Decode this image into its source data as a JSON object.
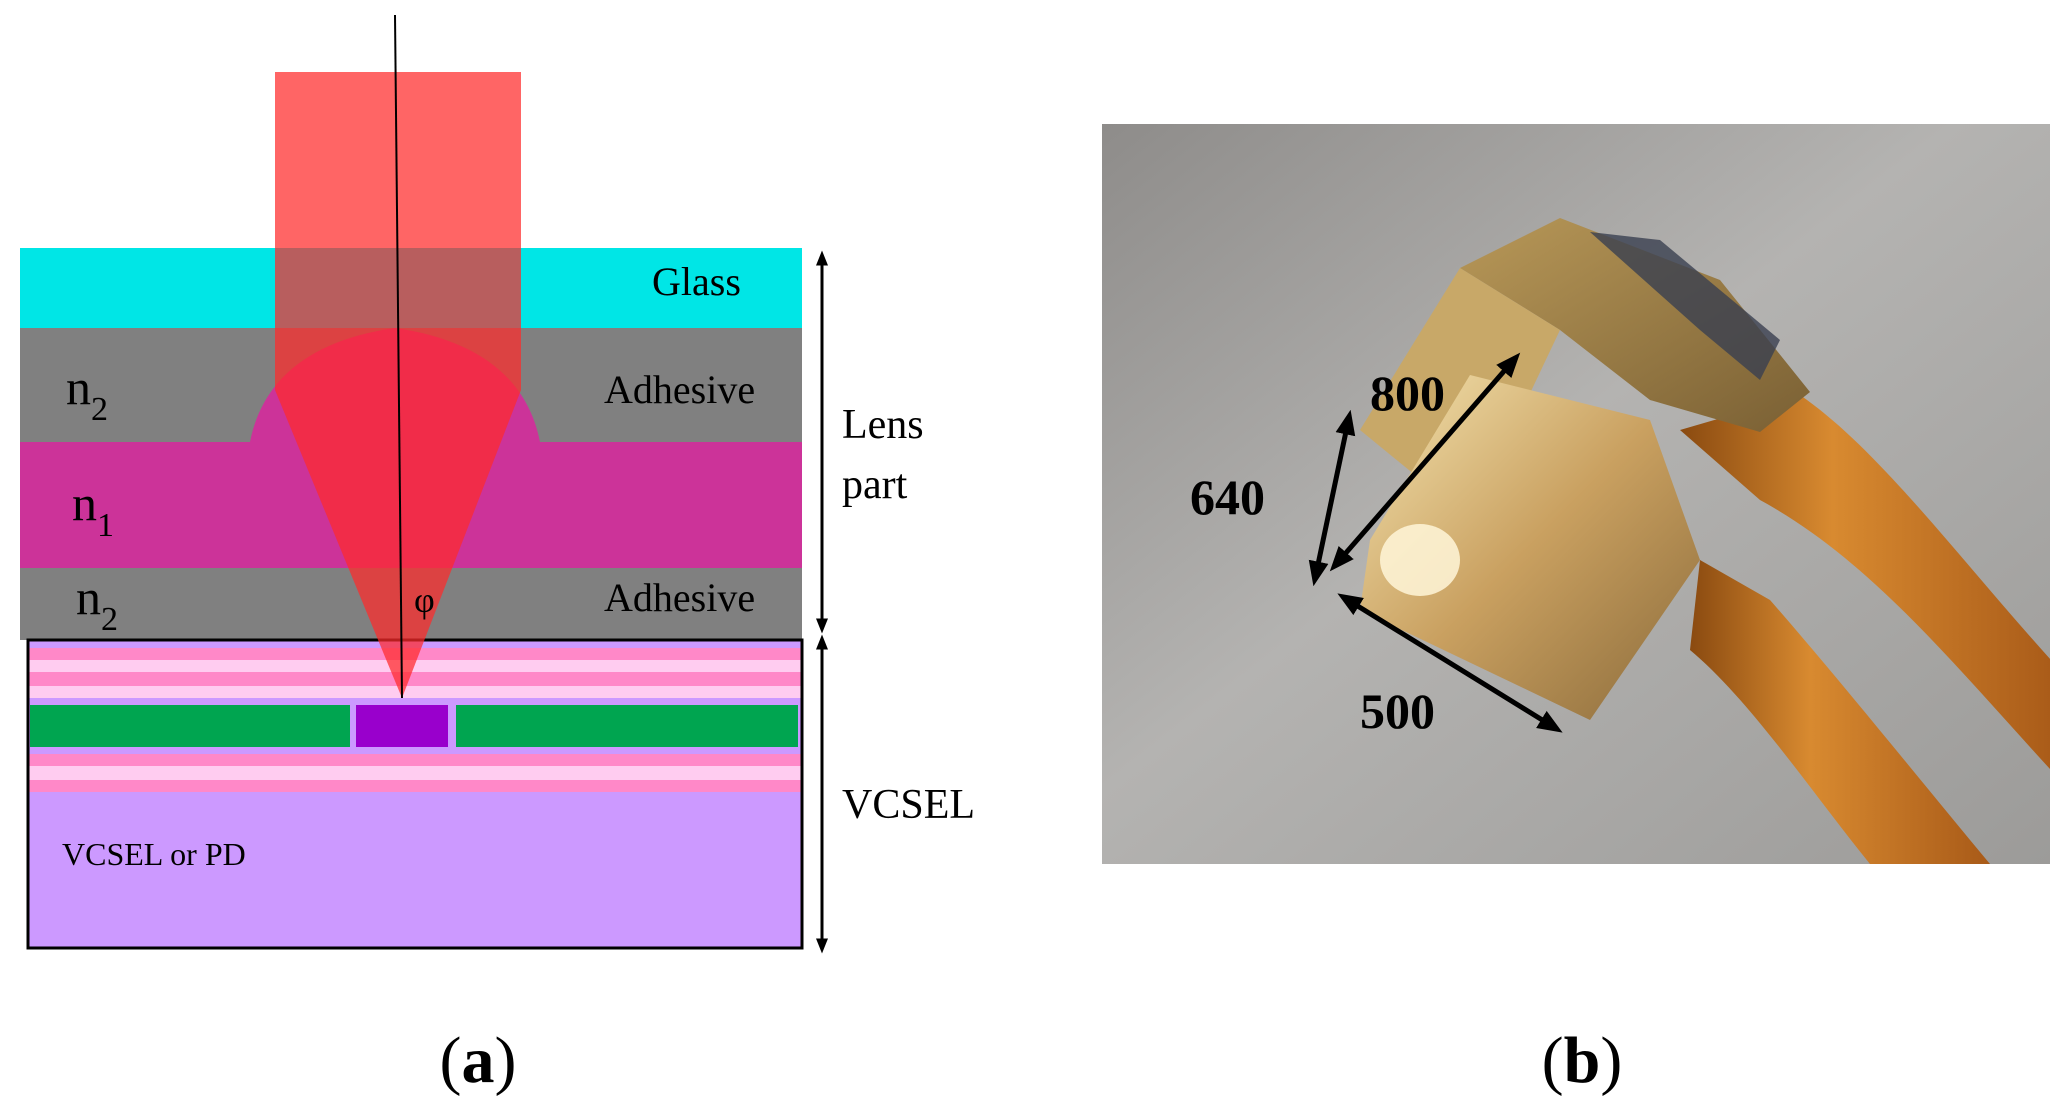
{
  "panel_a": {
    "layers": {
      "glass": "Glass",
      "adhesive_top": "Adhesive",
      "adhesive_bottom": "Adhesive",
      "n2_top_base": "n",
      "n2_top_sub": "2",
      "n1_base": "n",
      "n1_sub": "1",
      "n2_bottom_base": "n",
      "n2_bottom_sub": "2",
      "phi": "φ",
      "chip": "VCSEL or  PD"
    },
    "dimensions": {
      "lens_part_line1": "Lens",
      "lens_part_line2": "part",
      "vcsel": "VCSEL"
    },
    "caption_open": "(",
    "caption_letter": "a",
    "caption_close": ")"
  },
  "panel_b": {
    "labels": {
      "d800": "800",
      "d640": "640",
      "d500": "500"
    },
    "caption_open": "(",
    "caption_letter": "b",
    "caption_close": ")"
  },
  "colors": {
    "glass": "#00e6e6",
    "adhesive": "#808080",
    "n1_layer": "#cc3399",
    "chip": "#cc99ff",
    "active": "#00a550",
    "aperture": "#9900cc",
    "beam": "#ff2a2a",
    "photo_bg": "#a9a8a6",
    "copper": "#c8701c"
  }
}
